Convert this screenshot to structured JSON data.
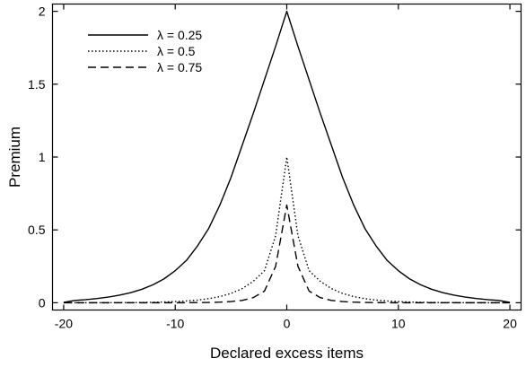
{
  "chart_data": {
    "type": "line",
    "title": "",
    "xlabel": "Declared excess items",
    "ylabel": "Premium",
    "xlim": [
      -21,
      21
    ],
    "ylim": [
      -0.05,
      2.05
    ],
    "grid": false,
    "legend_position": "top-left",
    "x_ticks": [
      -20,
      -10,
      0,
      10,
      20
    ],
    "x_tick_labels": [
      "-20",
      "-10",
      "0",
      "10",
      "20"
    ],
    "y_ticks": [
      0,
      0.5,
      1,
      1.5,
      2
    ],
    "y_tick_labels": [
      "0",
      "0.5",
      "1",
      "1.5",
      "2"
    ],
    "x": [
      -20,
      -19,
      -18,
      -17,
      -16,
      -15,
      -14,
      -13,
      -12,
      -11,
      -10,
      -9,
      -8,
      -7,
      -6,
      -5,
      -4,
      -3,
      -2,
      -1,
      0,
      1,
      2,
      3,
      4,
      5,
      6,
      7,
      8,
      9,
      10,
      11,
      12,
      13,
      14,
      15,
      16,
      17,
      18,
      19,
      20
    ],
    "series": [
      {
        "name": "λ = 0.25",
        "style": "solid",
        "values": [
          0.003,
          0.016,
          0.021,
          0.029,
          0.039,
          0.052,
          0.069,
          0.092,
          0.123,
          0.164,
          0.22,
          0.29,
          0.39,
          0.51,
          0.67,
          0.86,
          1.08,
          1.3,
          1.53,
          1.76,
          2.0,
          1.76,
          1.53,
          1.3,
          1.08,
          0.86,
          0.67,
          0.51,
          0.39,
          0.29,
          0.22,
          0.164,
          0.123,
          0.092,
          0.069,
          0.052,
          0.039,
          0.029,
          0.021,
          0.016,
          0.003
        ]
      },
      {
        "name": "λ = 0.5",
        "style": "dotted",
        "values": [
          0.0,
          0.0,
          0.0,
          0.0,
          0.0,
          0.001,
          0.001,
          0.002,
          0.003,
          0.005,
          0.008,
          0.012,
          0.018,
          0.028,
          0.042,
          0.064,
          0.097,
          0.147,
          0.22,
          0.46,
          1.0,
          0.46,
          0.22,
          0.147,
          0.097,
          0.064,
          0.042,
          0.028,
          0.018,
          0.012,
          0.008,
          0.005,
          0.003,
          0.002,
          0.001,
          0.001,
          0.0,
          0.0,
          0.0,
          0.0,
          0.0
        ]
      },
      {
        "name": "λ = 0.75",
        "style": "dashed",
        "values": [
          0.0,
          0.0,
          0.0,
          0.0,
          0.0,
          0.0,
          0.0,
          0.0,
          0.0,
          0.0,
          0.0,
          0.0,
          0.001,
          0.002,
          0.004,
          0.008,
          0.016,
          0.035,
          0.08,
          0.25,
          0.67,
          0.25,
          0.08,
          0.035,
          0.016,
          0.008,
          0.004,
          0.002,
          0.001,
          0.0,
          0.0,
          0.0,
          0.0,
          0.0,
          0.0,
          0.0,
          0.0,
          0.0,
          0.0,
          0.0,
          0.0
        ]
      }
    ]
  }
}
